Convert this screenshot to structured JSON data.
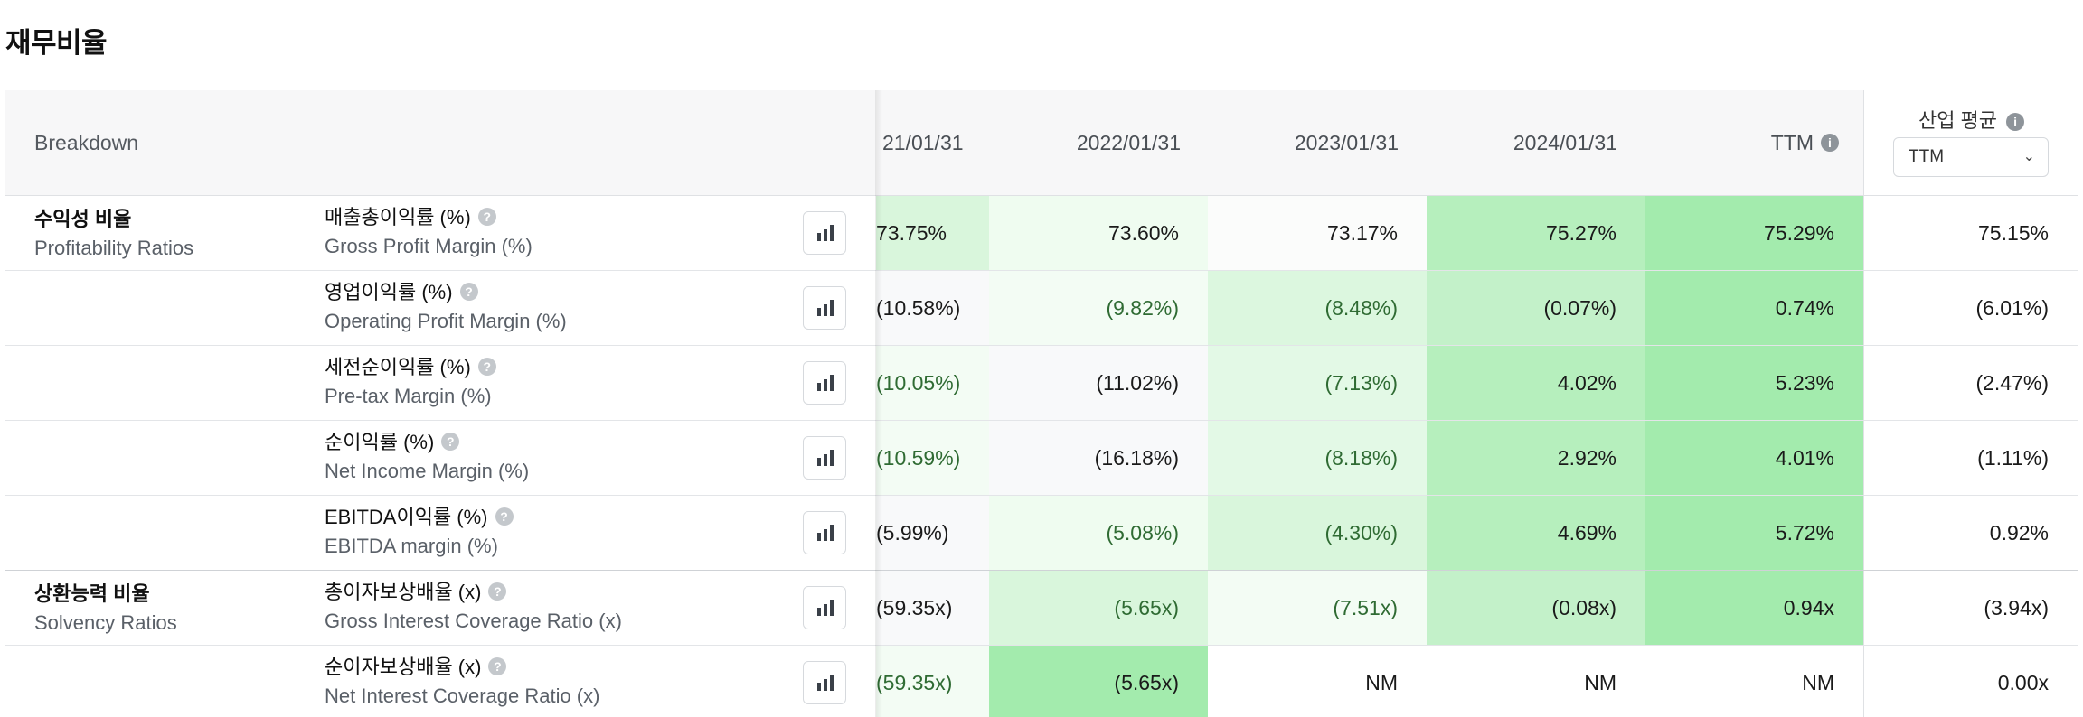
{
  "title": "재무비율",
  "header": {
    "breakdown": "Breakdown",
    "columns": [
      "21/01/31",
      "2022/01/31",
      "2023/01/31",
      "2024/01/31",
      "TTM"
    ],
    "industry_label": "산업 평균",
    "industry_select": "TTM"
  },
  "groups": [
    {
      "ko": "수익성 비율",
      "en": "Profitability Ratios"
    },
    {
      "ko": "상환능력 비율",
      "en": "Solvency Ratios"
    }
  ],
  "rows": [
    {
      "ko": "매출총이익률 (%)",
      "en": "Gross Profit Margin (%)",
      "values": [
        "73.75%",
        "73.60%",
        "73.17%",
        "75.27%",
        "75.29%"
      ],
      "industry": "75.15%",
      "colors": [
        "#d9f6dc",
        "#effcf0",
        "#fbfcfb",
        "#b6efbd",
        "#a3ebad"
      ]
    },
    {
      "ko": "영업이익률 (%)",
      "en": "Operating Profit Margin (%)",
      "values": [
        "(10.58%)",
        "(9.82%)",
        "(8.48%)",
        "(0.07%)",
        "0.74%"
      ],
      "industry": "(6.01%)",
      "colors": [
        "#f8f9fa",
        "#f3fcf4",
        "#dcf7df",
        "#c3f1c9",
        "#a3ebad"
      ]
    },
    {
      "ko": "세전순이익률 (%)",
      "en": "Pre-tax Margin (%)",
      "values": [
        "(10.05%)",
        "(11.02%)",
        "(7.13%)",
        "4.02%",
        "5.23%"
      ],
      "industry": "(2.47%)",
      "colors": [
        "#f3fcf4",
        "#f8f9fa",
        "#e3f9e6",
        "#b6efbd",
        "#a3ebad"
      ]
    },
    {
      "ko": "순이익률 (%)",
      "en": "Net Income Margin (%)",
      "values": [
        "(10.59%)",
        "(16.18%)",
        "(8.18%)",
        "2.92%",
        "4.01%"
      ],
      "industry": "(1.11%)",
      "colors": [
        "#f3fcf4",
        "#f8f9fa",
        "#e3f9e6",
        "#b6efbd",
        "#a3ebad"
      ]
    },
    {
      "ko": "EBITDA이익률 (%)",
      "en": "EBITDA margin (%)",
      "values": [
        "(5.99%)",
        "(5.08%)",
        "(4.30%)",
        "4.69%",
        "5.72%"
      ],
      "industry": "0.92%",
      "colors": [
        "#f8f9fa",
        "#effcf0",
        "#d9f6dc",
        "#b6efbd",
        "#a3ebad"
      ]
    },
    {
      "ko": "총이자보상배율 (x)",
      "en": "Gross Interest Coverage Ratio (x)",
      "values": [
        "(59.35x)",
        "(5.65x)",
        "(7.51x)",
        "(0.08x)",
        "0.94x"
      ],
      "industry": "(3.94x)",
      "colors": [
        "#f8f9fa",
        "#d9f6dc",
        "#f3fcf4",
        "#c3f1c9",
        "#a3ebad"
      ]
    },
    {
      "ko": "순이자보상배율 (x)",
      "en": "Net Interest Coverage Ratio (x)",
      "values": [
        "(59.35x)",
        "(5.65x)",
        "NM",
        "NM",
        "NM"
      ],
      "industry": "0.00x",
      "colors": [
        "#f3fcf4",
        "#a3ebad",
        "#ffffff",
        "#ffffff",
        "#ffffff"
      ]
    }
  ],
  "icons": {
    "info": "info-icon",
    "help": "question-icon",
    "chart": "bar-chart-icon",
    "chevron": "chevron-down-icon"
  }
}
